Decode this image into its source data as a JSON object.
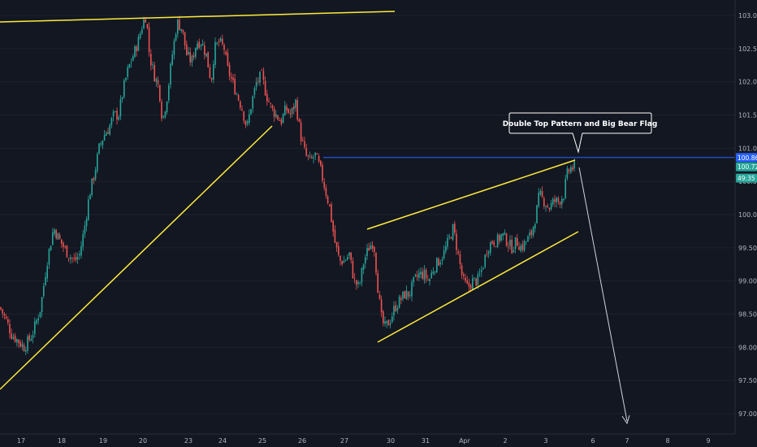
{
  "chart_data": {
    "type": "candlestick",
    "instrument_note": "",
    "annotation": "Double Top Pattern and Big Bear Flag",
    "y_ticks": [
      "103.00",
      "102.50",
      "102.00",
      "101.50",
      "101.00",
      "100.50",
      "100.00",
      "99.50",
      "99.00",
      "98.50",
      "98.00",
      "97.50",
      "97.00"
    ],
    "x_ticks": [
      "17",
      "18",
      "19",
      "20",
      "23",
      "24",
      "25",
      "26",
      "27",
      "30",
      "31",
      "Apr",
      "2",
      "3",
      "6",
      "7",
      "8",
      "9"
    ],
    "ylim": [
      96.8,
      103.2
    ],
    "price_badges": [
      {
        "label": "100.86",
        "value": 100.86,
        "color": "#2962ff"
      },
      {
        "label": "100.72",
        "value": 100.72,
        "color": "#26a69a"
      },
      {
        "label": "49:35",
        "value": 100.55,
        "color": "#26a69a"
      }
    ],
    "horizontal_level": 100.86,
    "up_color": "#26a69a",
    "down_color": "#ef5350",
    "trendline_color": "#ffeb3b",
    "projection_color": "#d1d4dc",
    "path_points": [
      [
        0,
        98.6
      ],
      [
        8,
        98.4
      ],
      [
        14,
        98.2
      ],
      [
        22,
        98.1
      ],
      [
        30,
        98.0
      ],
      [
        40,
        98.2
      ],
      [
        50,
        98.6
      ],
      [
        58,
        99.3
      ],
      [
        66,
        99.8
      ],
      [
        74,
        99.6
      ],
      [
        84,
        99.4
      ],
      [
        92,
        99.3
      ],
      [
        98,
        99.4
      ],
      [
        104,
        99.8
      ],
      [
        110,
        100.3
      ],
      [
        116,
        100.6
      ],
      [
        122,
        101.0
      ],
      [
        128,
        101.2
      ],
      [
        134,
        101.3
      ],
      [
        140,
        101.5
      ],
      [
        146,
        101.5
      ],
      [
        152,
        101.9
      ],
      [
        158,
        102.2
      ],
      [
        164,
        102.4
      ],
      [
        170,
        102.6
      ],
      [
        176,
        102.9
      ],
      [
        180,
        103.0
      ],
      [
        184,
        102.4
      ],
      [
        190,
        102.1
      ],
      [
        196,
        101.9
      ],
      [
        200,
        101.4
      ],
      [
        206,
        101.8
      ],
      [
        212,
        102.4
      ],
      [
        218,
        102.9
      ],
      [
        224,
        102.8
      ],
      [
        230,
        102.4
      ],
      [
        236,
        102.3
      ],
      [
        242,
        102.6
      ],
      [
        248,
        102.6
      ],
      [
        254,
        102.4
      ],
      [
        260,
        102.0
      ],
      [
        264,
        102.5
      ],
      [
        270,
        102.6
      ],
      [
        276,
        102.5
      ],
      [
        280,
        102.2
      ],
      [
        286,
        102.0
      ],
      [
        292,
        101.8
      ],
      [
        298,
        101.6
      ],
      [
        304,
        101.3
      ],
      [
        310,
        101.7
      ],
      [
        316,
        102.0
      ],
      [
        322,
        102.1
      ],
      [
        328,
        101.8
      ],
      [
        334,
        101.6
      ],
      [
        340,
        101.5
      ],
      [
        346,
        101.4
      ],
      [
        352,
        101.6
      ],
      [
        358,
        101.5
      ],
      [
        364,
        101.7
      ],
      [
        370,
        101.2
      ],
      [
        376,
        100.9
      ],
      [
        382,
        100.8
      ],
      [
        388,
        100.9
      ],
      [
        394,
        100.7
      ],
      [
        400,
        100.4
      ],
      [
        406,
        100.1
      ],
      [
        412,
        99.6
      ],
      [
        418,
        99.3
      ],
      [
        424,
        99.3
      ],
      [
        430,
        99.4
      ],
      [
        436,
        99.0
      ],
      [
        442,
        98.9
      ],
      [
        448,
        99.3
      ],
      [
        454,
        99.5
      ],
      [
        460,
        99.6
      ],
      [
        466,
        98.8
      ],
      [
        470,
        98.4
      ],
      [
        474,
        98.3
      ],
      [
        480,
        98.4
      ],
      [
        486,
        98.6
      ],
      [
        492,
        98.7
      ],
      [
        498,
        98.8
      ],
      [
        504,
        98.8
      ],
      [
        510,
        99.0
      ],
      [
        516,
        99.1
      ],
      [
        522,
        99.1
      ],
      [
        528,
        99.0
      ],
      [
        534,
        99.2
      ],
      [
        540,
        99.3
      ],
      [
        546,
        99.4
      ],
      [
        552,
        99.6
      ],
      [
        558,
        99.8
      ],
      [
        564,
        99.4
      ],
      [
        570,
        99.0
      ],
      [
        576,
        98.9
      ],
      [
        582,
        99.0
      ],
      [
        588,
        99.0
      ],
      [
        594,
        99.2
      ],
      [
        600,
        99.5
      ],
      [
        606,
        99.6
      ],
      [
        612,
        99.6
      ],
      [
        618,
        99.7
      ],
      [
        624,
        99.6
      ],
      [
        630,
        99.5
      ],
      [
        636,
        99.6
      ],
      [
        642,
        99.5
      ],
      [
        648,
        99.6
      ],
      [
        654,
        99.7
      ],
      [
        660,
        100.0
      ],
      [
        664,
        100.3
      ],
      [
        670,
        100.2
      ],
      [
        676,
        100.1
      ],
      [
        682,
        100.2
      ],
      [
        688,
        100.2
      ],
      [
        694,
        100.3
      ],
      [
        698,
        100.6
      ],
      [
        702,
        100.7
      ],
      [
        706,
        100.7
      ],
      [
        710,
        100.74
      ]
    ]
  }
}
